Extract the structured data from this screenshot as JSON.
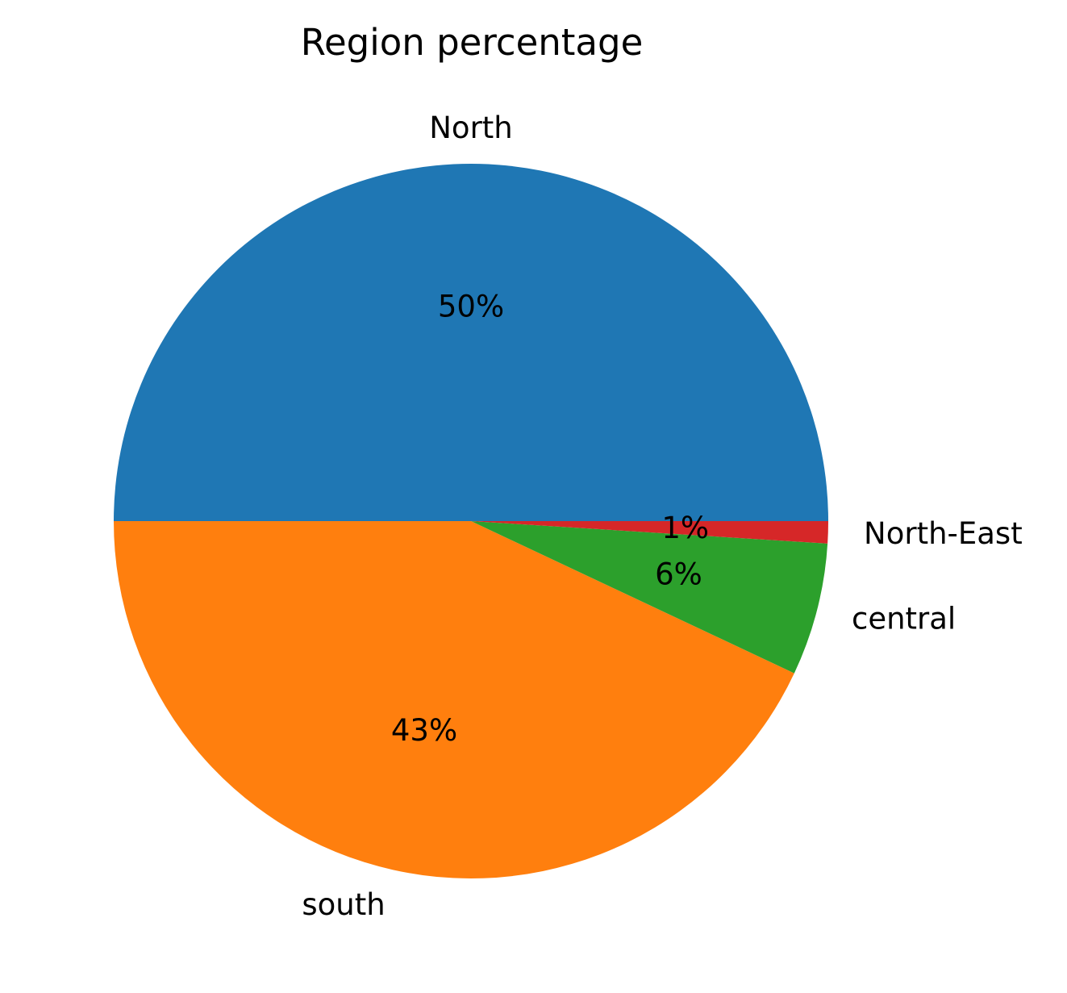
{
  "chart_data": {
    "type": "pie",
    "title": "Region percentage",
    "slices": [
      {
        "label": "North",
        "value": 50,
        "pct_label": "50%",
        "color": "#1f77b4"
      },
      {
        "label": "south",
        "value": 43,
        "pct_label": "43%",
        "color": "#ff7f0e"
      },
      {
        "label": "central",
        "value": 6,
        "pct_label": "6%",
        "color": "#2ca02c"
      },
      {
        "label": "North-East",
        "value": 1,
        "pct_label": "1%",
        "color": "#d62728"
      }
    ],
    "start_angle_deg": 0,
    "direction": "counterclockwise",
    "legend": "none"
  }
}
